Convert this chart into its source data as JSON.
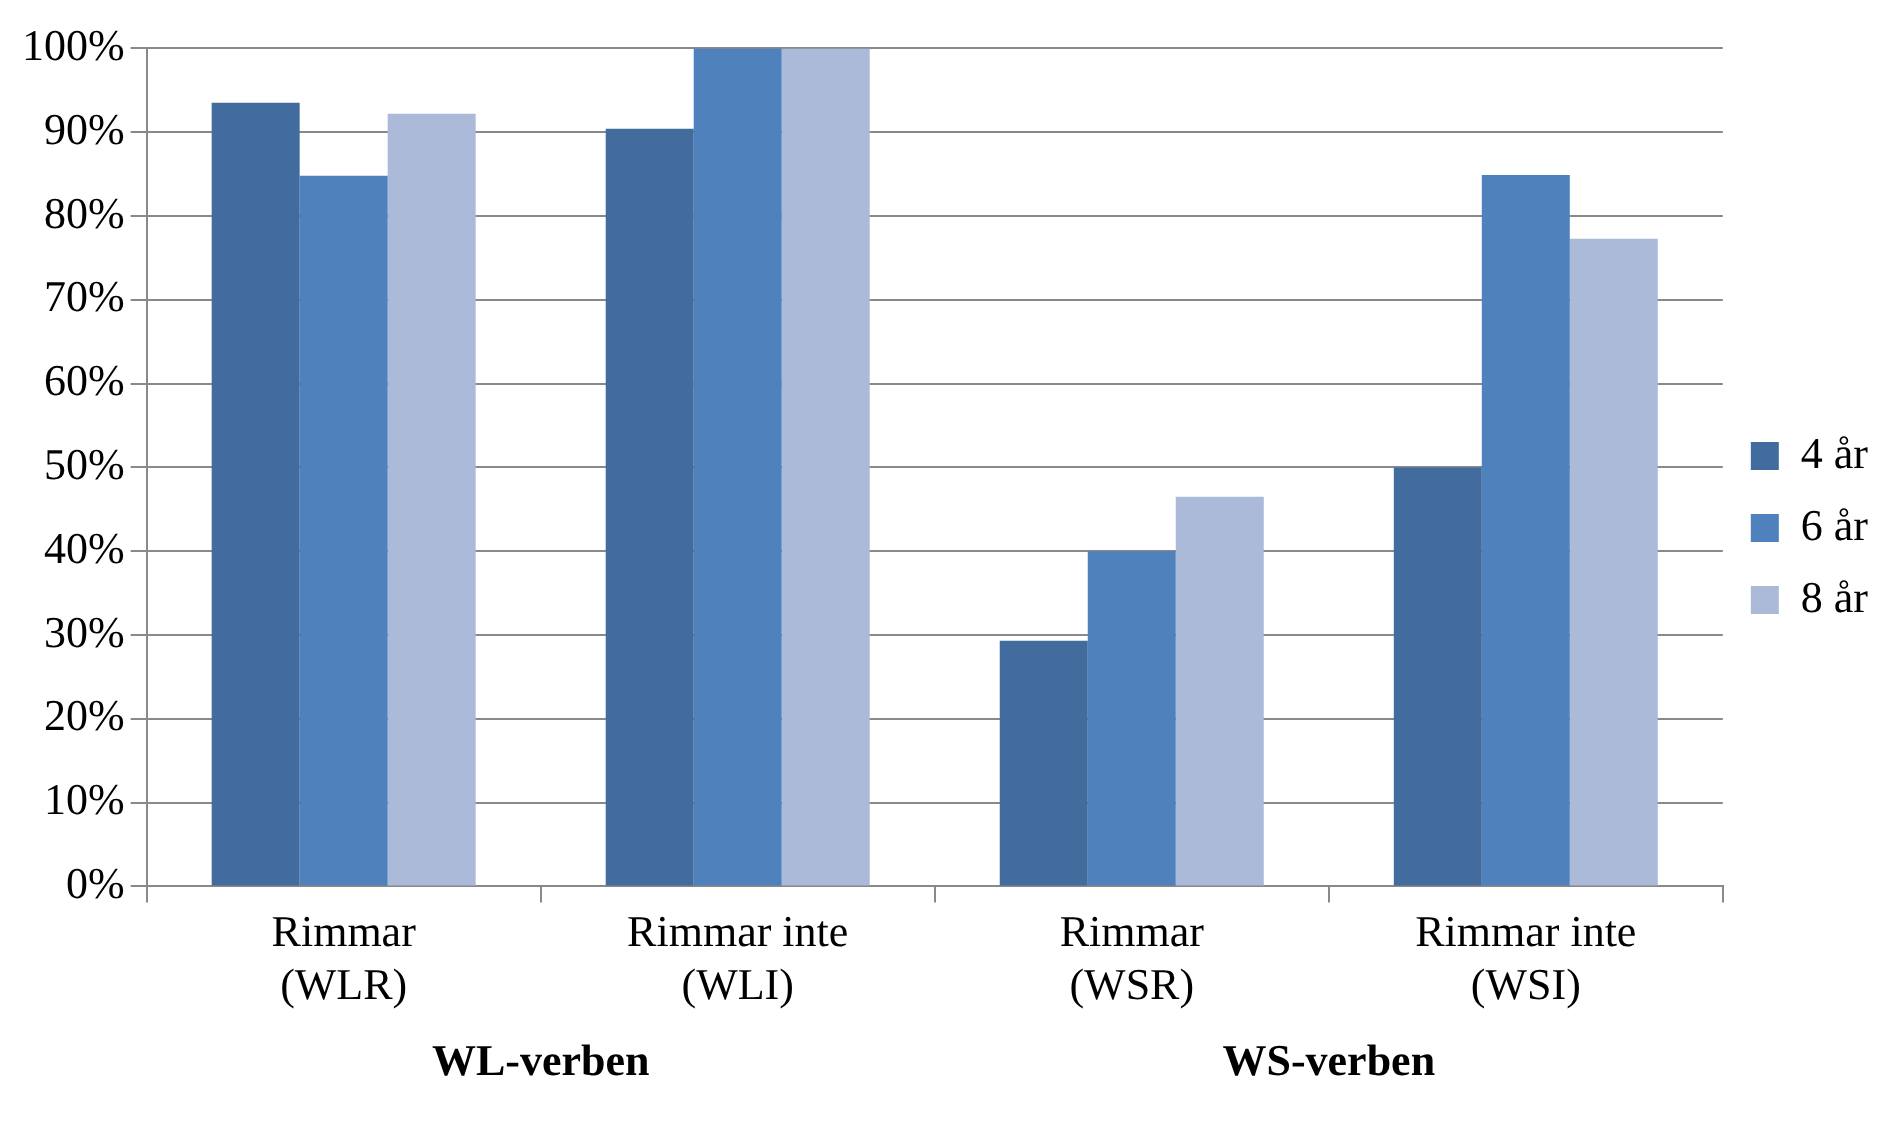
{
  "chart_data": {
    "type": "bar",
    "categories": [
      "Rimmar\n(WLR)",
      "Rimmar inte\n(WLI)",
      "Rimmar\n(WSR)",
      "Rimmar inte\n(WSI)"
    ],
    "series": [
      {
        "name": "4 år",
        "color": "#426b9e",
        "values": [
          93.5,
          90.4,
          29.3,
          50.0
        ]
      },
      {
        "name": "6 år",
        "color": "#4f81bd",
        "values": [
          84.8,
          100,
          40.0,
          84.9
        ]
      },
      {
        "name": "8 år",
        "color": "#abbad8",
        "values": [
          92.2,
          100,
          46.5,
          77.3
        ]
      }
    ],
    "ylim": [
      0,
      100
    ],
    "yticks": [
      {
        "value": 0,
        "label": "0%"
      },
      {
        "value": 10,
        "label": "10%"
      },
      {
        "value": 20,
        "label": "20%"
      },
      {
        "value": 30,
        "label": "30%"
      },
      {
        "value": 40,
        "label": "40%"
      },
      {
        "value": 50,
        "label": "50%"
      },
      {
        "value": 60,
        "label": "60%"
      },
      {
        "value": 70,
        "label": "70%"
      },
      {
        "value": 80,
        "label": "80%"
      },
      {
        "value": 90,
        "label": "90%"
      },
      {
        "value": 100,
        "label": "100%"
      }
    ],
    "annotations": [
      "WL-verben",
      "WS-verben"
    ],
    "grid": "y",
    "legend": "right"
  }
}
